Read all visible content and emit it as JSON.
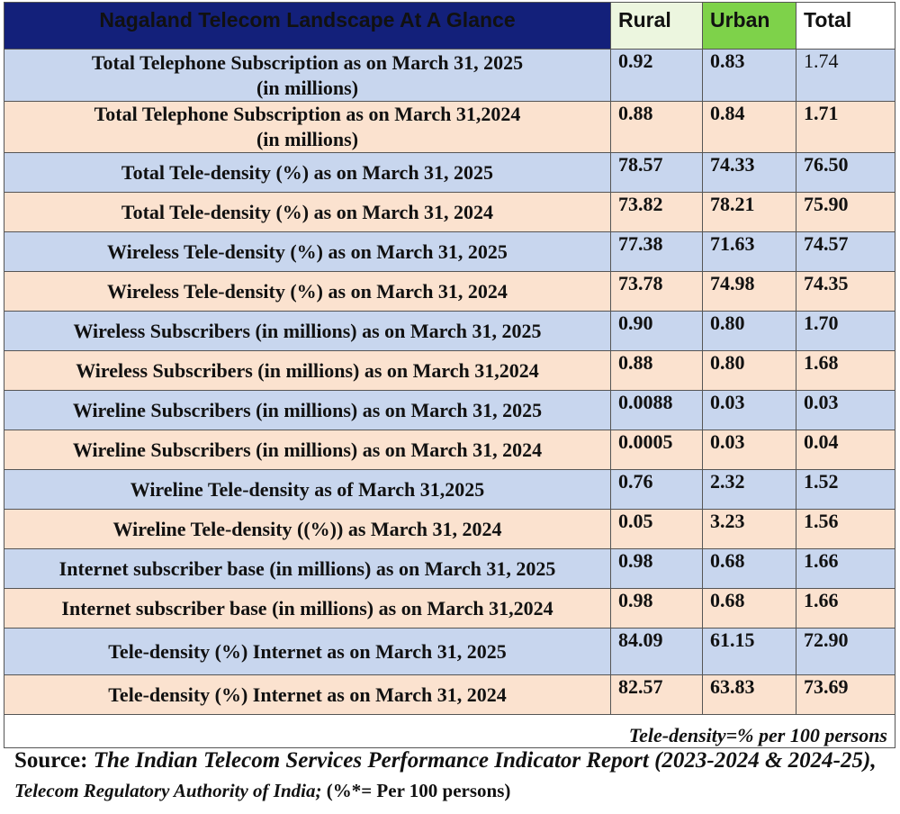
{
  "colors": {
    "header_title_bg": "#13207a",
    "header_rural_bg": "#ecf6df",
    "header_urban_bg": "#7ed24a",
    "header_total_bg": "#ffffff",
    "row_blue": "#c8d6ee",
    "row_peach": "#fbe2cf"
  },
  "table": {
    "title": "Nagaland Telecom Landscape At A Glance",
    "columns": [
      "Rural",
      "Urban",
      "Total"
    ],
    "rows": [
      {
        "label_l1": "Total Telephone Subscription as on March 31, 2025",
        "label_l2": "(in millions)",
        "rural": "0.92",
        "urban": "0.83",
        "total": "1.74"
      },
      {
        "label_l1": "Total Telephone Subscription as on March 31,2024",
        "label_l2": "(in millions)",
        "rural": "0.88",
        "urban": "0.84",
        "total": "1.71"
      },
      {
        "label_l1": "Total Tele-density (%) as on March 31, 2025",
        "rural": "78.57",
        "urban": "74.33",
        "total": "76.50"
      },
      {
        "label_l1": "Total Tele-density (%) as on March 31, 2024",
        "rural": "73.82",
        "urban": "78.21",
        "total": "75.90"
      },
      {
        "label_l1": "Wireless Tele-density (%) as on March 31, 2025",
        "rural": "77.38",
        "urban": "71.63",
        "total": "74.57"
      },
      {
        "label_l1": "Wireless Tele-density (%) as on March 31, 2024",
        "rural": "73.78",
        "urban": "74.98",
        "total": "74.35"
      },
      {
        "label_l1": "Wireless Subscribers (in millions) as on March 31, 2025",
        "rural": "0.90",
        "urban": "0.80",
        "total": "1.70"
      },
      {
        "label_l1": "Wireless Subscribers (in millions) as on March 31,2024",
        "rural": "0.88",
        "urban": "0.80",
        "total": "1.68"
      },
      {
        "label_l1": "Wireline Subscribers (in millions) as on March 31, 2025",
        "rural": "0.0088",
        "urban": "0.03",
        "total": "0.03"
      },
      {
        "label_l1": "Wireline Subscribers (in millions) as on March 31, 2024",
        "rural": "0.0005",
        "urban": "0.03",
        "total": "0.04"
      },
      {
        "label_l1": "Wireline Tele-density as of March 31,2025",
        "rural": "0.76",
        "urban": "2.32",
        "total": "1.52"
      },
      {
        "label_l1": "Wireline Tele-density ((%)) as March 31, 2024",
        "rural": "0.05",
        "urban": "3.23",
        "total": "1.56"
      },
      {
        "label_l1": "Internet subscriber base (in millions) as on March 31, 2025",
        "rural": "0.98",
        "urban": "0.68",
        "total": "1.66"
      },
      {
        "label_l1": "Internet subscriber base (in millions) as on March 31,2024",
        "rural": "0.98",
        "urban": "0.68",
        "total": "1.66"
      },
      {
        "label_l1": "Tele-density (%) Internet  as on March 31, 2025",
        "rural": "84.09",
        "urban": "61.15",
        "total": "72.90"
      },
      {
        "label_l1": "Tele-density (%) Internet  as on March 31, 2024",
        "rural": "82.57",
        "urban": "63.83",
        "total": "73.69"
      }
    ],
    "footnote": "Tele-density=% per 100 persons"
  },
  "source": {
    "prefix": "Source: ",
    "report": "The Indian Telecom Services Performance Indicator Report (2023-2024 & 2024-25), ",
    "authority": "Telecom Regulatory Authority of India;",
    "suffix": " (%*= Per 100 persons)"
  }
}
